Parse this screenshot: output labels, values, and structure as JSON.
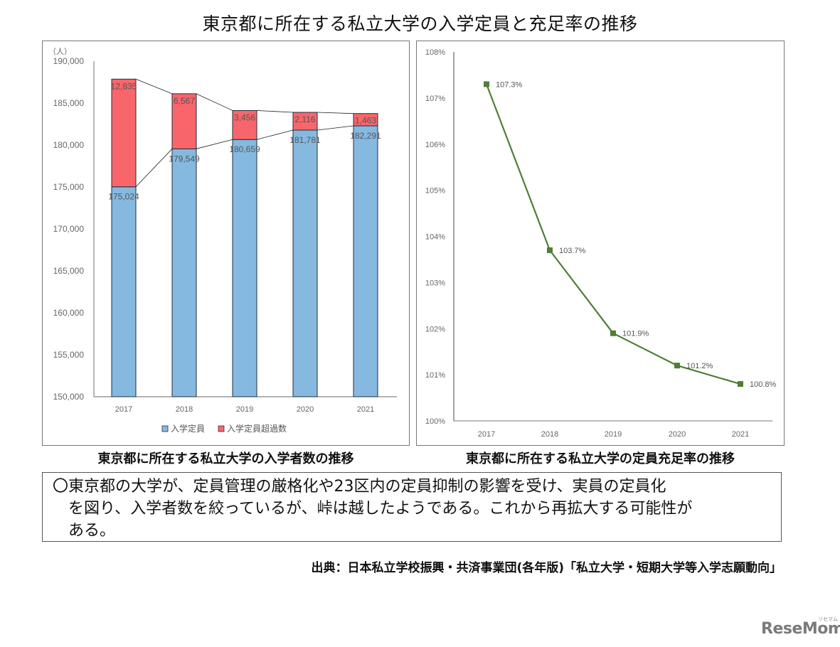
{
  "title": "東京都に所在する私立大学の入学定員と充足率の推移",
  "left_panel": {
    "caption": "東京都に所在する私立大学の入学者数の推移",
    "unit_label": "（人）"
  },
  "right_panel": {
    "caption": "東京都に所在する私立大学の定員充足率の推移"
  },
  "note": {
    "line1": "〇東京都の大学が、定員管理の厳格化や23区内の定員抑制の影響を受け、実員の定員化",
    "line2": "を図り、入学者数を絞っているが、峠は越したようである。これから再拡大する可能性が",
    "line3": "ある。"
  },
  "source": "出典：日本私立学校振興・共済事業団(各年版)「私立大学・短期大学等入学志願動向」",
  "logo": {
    "text": "ReseMom",
    "small": "リセマム"
  },
  "colors": {
    "capacity": "#86b9e0",
    "excess": "#f8666b",
    "line": "#4f7f35"
  },
  "chart_data": [
    {
      "type": "bar",
      "stacked": true,
      "title": "東京都に所在する私立大学の入学者数の推移",
      "categories": [
        "2017",
        "2018",
        "2019",
        "2020",
        "2021"
      ],
      "series": [
        {
          "name": "入学定員",
          "color": "#86b9e0",
          "values": [
            175024,
            179549,
            180659,
            181781,
            182291
          ]
        },
        {
          "name": "入学定員超過数",
          "color": "#f8666b",
          "values": [
            12835,
            6567,
            3456,
            2116,
            1463
          ]
        }
      ],
      "data_labels": {
        "入学定員": [
          "175,024",
          "179,549",
          "180,659",
          "181,781",
          "182,291"
        ],
        "入学定員超過数": [
          "12,835",
          "6,567",
          "3,456",
          "2,116",
          "1,463"
        ]
      },
      "xlabel": "",
      "ylabel": "（人）",
      "ylim": [
        150000,
        190000
      ],
      "yticks": [
        "150,000",
        "155,000",
        "160,000",
        "165,000",
        "170,000",
        "175,000",
        "180,000",
        "185,000",
        "190,000"
      ],
      "series_lines": true,
      "grid": false,
      "legend_position": "bottom"
    },
    {
      "type": "line",
      "title": "東京都に所在する私立大学の定員充足率の推移",
      "categories": [
        "2017",
        "2018",
        "2019",
        "2020",
        "2021"
      ],
      "series": [
        {
          "name": "定員充足率",
          "color": "#4f7f35",
          "values": [
            107.3,
            103.7,
            101.9,
            101.2,
            100.8
          ]
        }
      ],
      "data_labels": [
        "107.3%",
        "103.7%",
        "101.9%",
        "101.2%",
        "100.8%"
      ],
      "xlabel": "",
      "ylabel": "",
      "ylim": [
        100,
        108
      ],
      "yticks": [
        "100%",
        "101%",
        "102%",
        "103%",
        "104%",
        "105%",
        "106%",
        "107%",
        "108%"
      ],
      "marker": "square",
      "grid": false,
      "legend_position": "none"
    }
  ]
}
